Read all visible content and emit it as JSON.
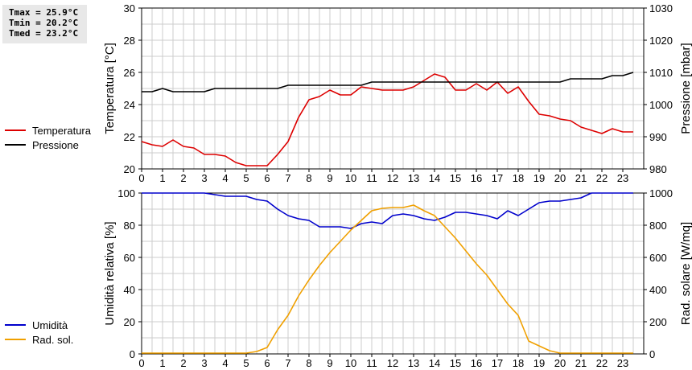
{
  "stats": {
    "tmax": "Tmax = 25.9°C",
    "tmin": "Tmin = 20.2°C",
    "tmed": "Tmed = 23.2°C"
  },
  "colors": {
    "temperatura": "#dd0000",
    "pressione": "#000000",
    "umidita": "#0000cc",
    "radiazione": "#f0a000",
    "grid": "#cccccc"
  },
  "chart_data": [
    {
      "type": "line",
      "ylabel": "Temperatura [°C]",
      "y2label": "Pressione [mbar]",
      "xlim": [
        0,
        24
      ],
      "ylim": [
        20,
        30
      ],
      "y2lim": [
        980,
        1030
      ],
      "x_ticks": [
        "0",
        "1",
        "2",
        "3",
        "4",
        "5",
        "6",
        "7",
        "8",
        "9",
        "10",
        "11",
        "12",
        "13",
        "14",
        "15",
        "16",
        "17",
        "18",
        "19",
        "20",
        "21",
        "22",
        "23"
      ],
      "y_ticks": [
        "20",
        "22",
        "24",
        "26",
        "28",
        "30"
      ],
      "y2_ticks": [
        "980",
        "990",
        "1000",
        "1010",
        "1020",
        "1030"
      ],
      "grid": true,
      "legend_position": "left",
      "series": [
        {
          "name": "Temperatura",
          "axis": "left",
          "x": [
            0,
            0.5,
            1,
            1.5,
            2,
            2.5,
            3,
            3.5,
            4,
            4.5,
            5,
            5.5,
            6,
            6.5,
            7,
            7.5,
            8,
            8.5,
            9,
            9.5,
            10,
            10.5,
            11,
            11.5,
            12,
            12.5,
            13,
            13.5,
            14,
            14.5,
            15,
            15.5,
            16,
            16.5,
            17,
            17.5,
            18,
            18.5,
            19,
            19.5,
            20,
            20.5,
            21,
            21.5,
            22,
            22.5,
            23,
            23.5
          ],
          "values": [
            21.7,
            21.5,
            21.4,
            21.8,
            21.4,
            21.3,
            20.9,
            20.9,
            20.8,
            20.4,
            20.2,
            20.2,
            20.2,
            20.9,
            21.7,
            23.2,
            24.3,
            24.5,
            24.9,
            24.6,
            24.6,
            25.1,
            25.0,
            24.9,
            24.9,
            24.9,
            25.1,
            25.5,
            25.9,
            25.7,
            24.9,
            24.9,
            25.3,
            24.9,
            25.4,
            24.7,
            25.1,
            24.2,
            23.4,
            23.3,
            23.1,
            23.0,
            22.6,
            22.4,
            22.2,
            22.5,
            22.3,
            22.3
          ]
        },
        {
          "name": "Pressione",
          "axis": "right",
          "x": [
            0,
            0.5,
            1,
            1.5,
            2,
            2.5,
            3,
            3.5,
            4,
            4.5,
            5,
            5.5,
            6,
            6.5,
            7,
            7.5,
            8,
            8.5,
            9,
            9.5,
            10,
            10.5,
            11,
            11.5,
            12,
            12.5,
            13,
            13.5,
            14,
            14.5,
            15,
            15.5,
            16,
            16.5,
            17,
            17.5,
            18,
            18.5,
            19,
            19.5,
            20,
            20.5,
            21,
            21.5,
            22,
            22.5,
            23,
            23.5
          ],
          "values": [
            1004,
            1004,
            1005,
            1004,
            1004,
            1004,
            1004,
            1005,
            1005,
            1005,
            1005,
            1005,
            1005,
            1005,
            1006,
            1006,
            1006,
            1006,
            1006,
            1006,
            1006,
            1006,
            1007,
            1007,
            1007,
            1007,
            1007,
            1007,
            1007,
            1007,
            1007,
            1007,
            1007,
            1007,
            1007,
            1007,
            1007,
            1007,
            1007,
            1007,
            1007,
            1008,
            1008,
            1008,
            1008,
            1009,
            1009,
            1010
          ]
        }
      ]
    },
    {
      "type": "line",
      "ylabel": "Umidità relativa [%]",
      "y2label": "Rad. solare [W/mq]",
      "xlim": [
        0,
        24
      ],
      "ylim": [
        0,
        100
      ],
      "y2lim": [
        0,
        1000
      ],
      "x_ticks": [
        "0",
        "1",
        "2",
        "3",
        "4",
        "5",
        "6",
        "7",
        "8",
        "9",
        "10",
        "11",
        "12",
        "13",
        "14",
        "15",
        "16",
        "17",
        "18",
        "19",
        "20",
        "21",
        "22",
        "23"
      ],
      "y_ticks": [
        "0",
        "20",
        "40",
        "60",
        "80",
        "100"
      ],
      "y2_ticks": [
        "0",
        "200",
        "400",
        "600",
        "800",
        "1000"
      ],
      "grid": true,
      "legend_position": "left",
      "series": [
        {
          "name": "Umidità",
          "axis": "left",
          "x": [
            0,
            0.5,
            1,
            1.5,
            2,
            2.5,
            3,
            3.5,
            4,
            4.5,
            5,
            5.5,
            6,
            6.5,
            7,
            7.5,
            8,
            8.5,
            9,
            9.5,
            10,
            10.5,
            11,
            11.5,
            12,
            12.5,
            13,
            13.5,
            14,
            14.5,
            15,
            15.5,
            16,
            16.5,
            17,
            17.5,
            18,
            18.5,
            19,
            19.5,
            20,
            20.5,
            21,
            21.5,
            22,
            22.5,
            23,
            23.5
          ],
          "values": [
            100,
            100,
            100,
            100,
            100,
            100,
            100,
            99,
            98,
            98,
            98,
            96,
            95,
            90,
            86,
            84,
            83,
            79,
            79,
            79,
            78,
            81,
            82,
            81,
            86,
            87,
            86,
            84,
            83,
            85,
            88,
            88,
            87,
            86,
            84,
            89,
            86,
            90,
            94,
            95,
            95,
            96,
            97,
            100,
            100,
            100,
            100,
            100
          ]
        },
        {
          "name": "Rad. sol.",
          "axis": "right",
          "x": [
            0,
            0.5,
            1,
            1.5,
            2,
            2.5,
            3,
            3.5,
            4,
            4.5,
            5,
            5.5,
            6,
            6.5,
            7,
            7.5,
            8,
            8.5,
            9,
            9.5,
            10,
            10.5,
            11,
            11.5,
            12,
            12.5,
            13,
            13.5,
            14,
            14.5,
            15,
            15.5,
            16,
            16.5,
            17,
            17.5,
            18,
            18.5,
            19,
            19.5,
            20,
            20.5,
            21,
            21.5,
            22,
            22.5,
            23,
            23.5
          ],
          "values": [
            5,
            5,
            5,
            5,
            5,
            5,
            5,
            5,
            5,
            5,
            5,
            15,
            40,
            150,
            240,
            360,
            460,
            550,
            630,
            700,
            770,
            830,
            890,
            905,
            910,
            910,
            925,
            890,
            860,
            790,
            720,
            640,
            560,
            490,
            400,
            310,
            240,
            80,
            50,
            20,
            5,
            5,
            5,
            5,
            5,
            5,
            5,
            5
          ]
        }
      ]
    }
  ]
}
